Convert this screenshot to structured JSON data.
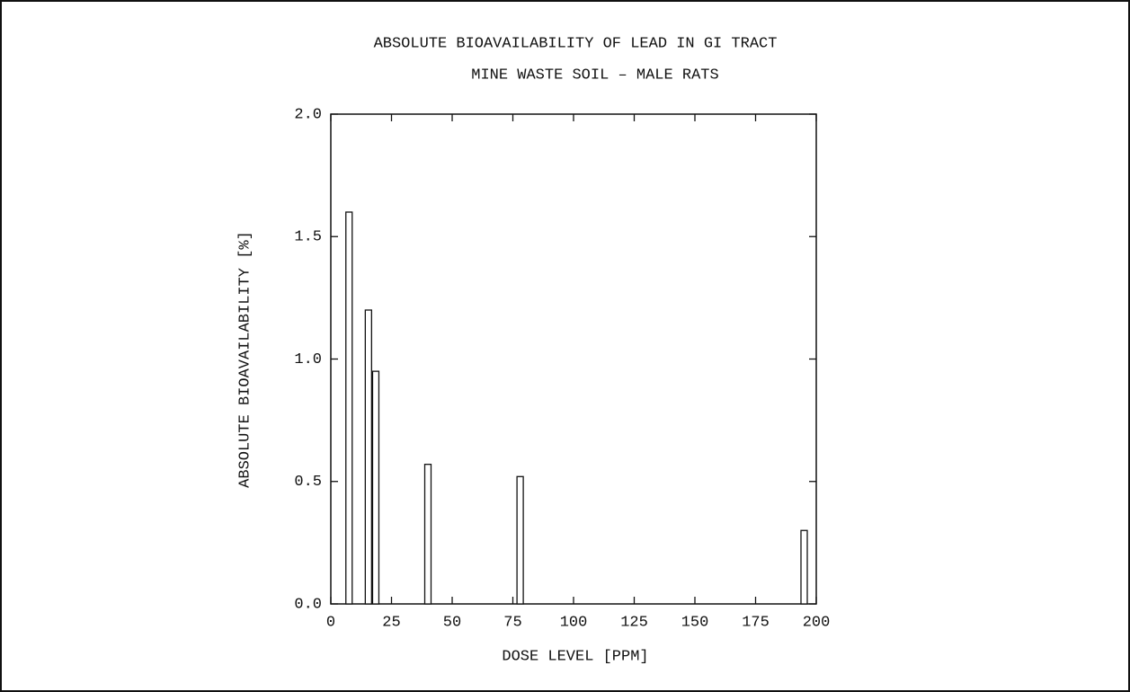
{
  "chart_data": {
    "type": "bar",
    "title": "ABSOLUTE BIOAVAILABILITY OF LEAD IN GI TRACT",
    "subtitle": "MINE WASTE SOIL – MALE RATS",
    "x_label": "DOSE LEVEL [PPM]",
    "y_label": "ABSOLUTE BIOAVAILABILITY [%]",
    "x": [
      7.5,
      15.5,
      18.5,
      40,
      78,
      195
    ],
    "values": [
      1.6,
      1.2,
      0.95,
      0.57,
      0.52,
      0.3
    ],
    "color": "#ffffff",
    "xlim": [
      0,
      200
    ],
    "xticks": [
      0,
      25,
      50,
      75,
      100,
      125,
      150,
      175,
      200
    ],
    "ylim": [
      0,
      2
    ],
    "yticks": [
      {
        "value": 0,
        "label": "0.0"
      },
      {
        "value": 0.5,
        "label": "0.5"
      },
      {
        "value": 1,
        "label": "1.0"
      },
      {
        "value": 1.5,
        "label": "1.5"
      },
      {
        "value": 2,
        "label": "2.0"
      }
    ],
    "grid": false
  }
}
